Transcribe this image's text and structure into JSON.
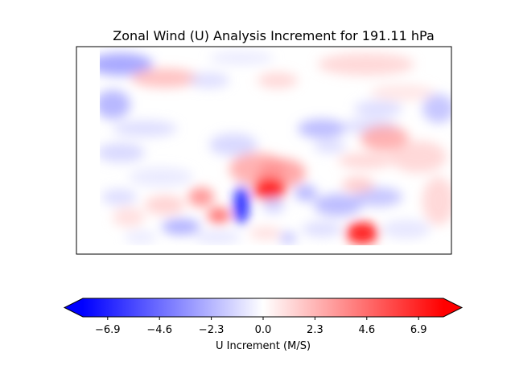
{
  "chart_data": {
    "type": "heatmap",
    "title": "Zonal Wind (U) Analysis Increment for 191.11 hPa",
    "colorbar": {
      "label": "U Increment (M/S)",
      "ticks": [
        -6.9,
        -4.6,
        -2.3,
        0.0,
        2.3,
        4.6,
        6.9
      ],
      "tick_labels": [
        "−6.9",
        "−4.6",
        "−2.3",
        "0.0",
        "2.3",
        "4.6",
        "6.9"
      ],
      "range": [
        -8,
        8
      ],
      "extend": "both",
      "colormap": "bwr",
      "colors": {
        "min": "#0000ff",
        "mid": "#ffffff",
        "max": "#ff0000"
      }
    },
    "grid": false,
    "features": [
      {
        "kind": "positive_max",
        "value": 7.5,
        "region": "center",
        "note": ""
      },
      {
        "kind": "negative_min",
        "value": -7.5,
        "region": "center-lower",
        "note": ""
      },
      {
        "kind": "positive_max",
        "value": 7.0,
        "region": "bottom-right",
        "note": ""
      }
    ]
  }
}
